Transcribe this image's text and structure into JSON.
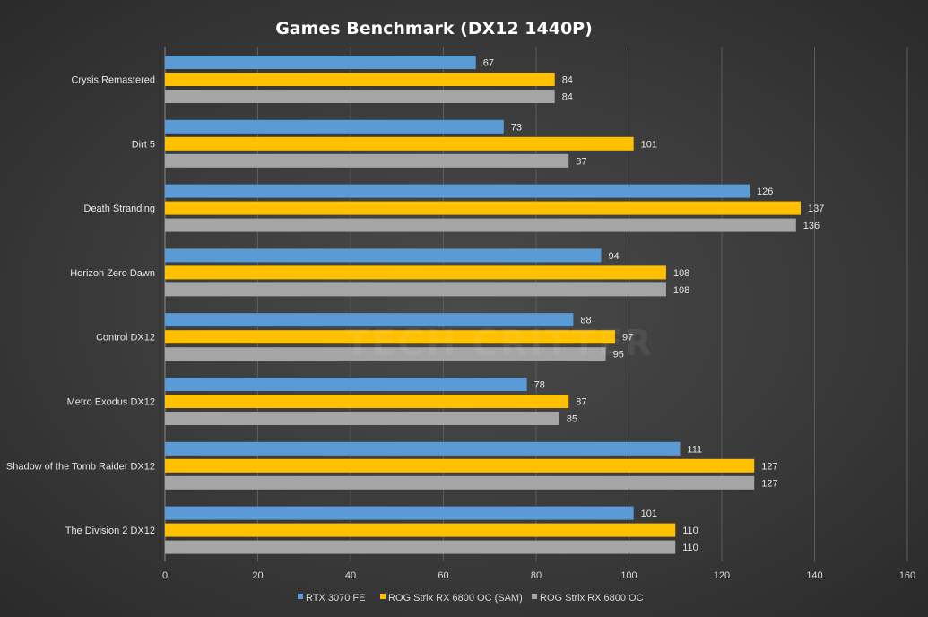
{
  "chart_data": {
    "type": "bar",
    "orientation": "horizontal",
    "title": "Games  Benchmark  (DX12  1440P)",
    "categories": [
      "Crysis Remastered",
      "Dirt 5",
      "Death Stranding",
      "Horizon Zero Dawn",
      "Control DX12",
      "Metro Exodus DX12",
      "Shadow of the Tomb Raider DX12",
      "The Division 2 DX12"
    ],
    "series": [
      {
        "name": "RTX 3070 FE",
        "color": "#5b9bd5",
        "values": [
          67,
          73,
          126,
          94,
          88,
          78,
          111,
          101
        ]
      },
      {
        "name": "ROG Strix RX 6800 OC (SAM)",
        "color": "#ffc000",
        "values": [
          84,
          101,
          137,
          108,
          97,
          87,
          127,
          110
        ]
      },
      {
        "name": "ROG Strix RX 6800 OC",
        "color": "#a5a5a5",
        "values": [
          84,
          87,
          136,
          108,
          95,
          85,
          127,
          110
        ]
      }
    ],
    "xlim": [
      0,
      160
    ],
    "xticks": [
      0,
      20,
      40,
      60,
      80,
      100,
      120,
      140,
      160
    ],
    "grid": true,
    "legend_position": "bottom"
  },
  "watermark": "TECH CRITTER"
}
